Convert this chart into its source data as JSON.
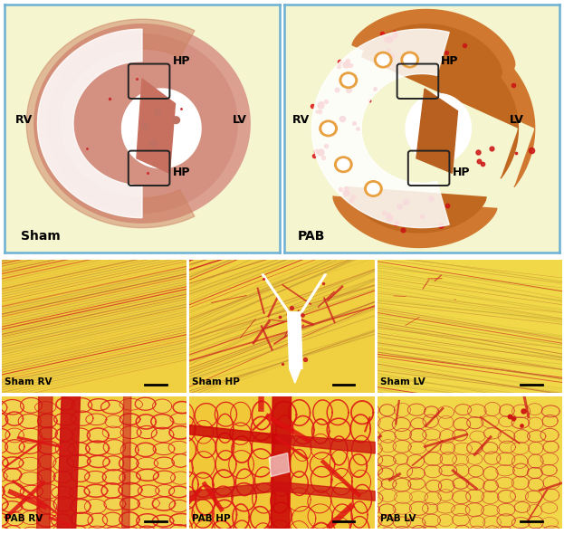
{
  "fig_width": 6.23,
  "fig_height": 5.9,
  "dpi": 100,
  "outer_border_color": "#6ab0d4",
  "panel_bg": "#f5f5d0",
  "label_fontsize": 10,
  "micro_label_fontsize": 8,
  "micro_labels": [
    "Sham RV",
    "Sham HP",
    "Sham LV",
    "PAB RV",
    "PAB HP",
    "PAB LV"
  ],
  "sham_heart_color": "#d4907a",
  "pab_heart_color": "#d07830",
  "micro_sham_bg": "#f0d040",
  "micro_pab_bg": "#f0d040",
  "red_collagen": "#cc1010",
  "fiber_tan": "#d4a020",
  "fiber_orange": "#c07030"
}
